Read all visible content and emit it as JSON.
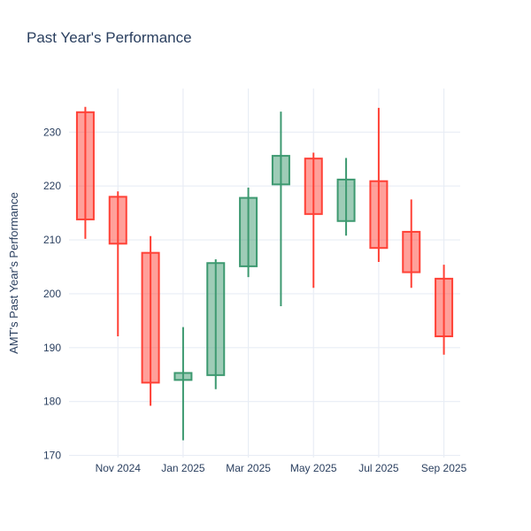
{
  "window": {
    "background": "#ffffff"
  },
  "chart_data": {
    "type": "candlestick",
    "title": "Past Year's Performance",
    "xlabel": "",
    "ylabel": "AMT's Past Year's Performance",
    "categories": [
      "Oct 2024",
      "Nov 2024",
      "Dec 2024",
      "Jan 2025",
      "Feb 2025",
      "Mar 2025",
      "Apr 2025",
      "May 2025",
      "Jun 2025",
      "Jul 2025",
      "Aug 2025",
      "Sep 2025"
    ],
    "ohlc": [
      {
        "x": "Oct 2024",
        "open": 233.7,
        "high": 234.7,
        "low": 210.2,
        "close": 213.8
      },
      {
        "x": "Nov 2024",
        "open": 218.0,
        "high": 219.0,
        "low": 192.1,
        "close": 209.3
      },
      {
        "x": "Dec 2024",
        "open": 207.6,
        "high": 210.7,
        "low": 179.2,
        "close": 183.5
      },
      {
        "x": "Jan 2025",
        "open": 184.0,
        "high": 193.8,
        "low": 172.8,
        "close": 185.3
      },
      {
        "x": "Feb 2025",
        "open": 184.9,
        "high": 206.4,
        "low": 182.3,
        "close": 205.7
      },
      {
        "x": "Mar 2025",
        "open": 205.1,
        "high": 219.7,
        "low": 203.1,
        "close": 217.8
      },
      {
        "x": "Apr 2025",
        "open": 220.3,
        "high": 233.8,
        "low": 197.7,
        "close": 225.6
      },
      {
        "x": "May 2025",
        "open": 225.1,
        "high": 226.2,
        "low": 201.1,
        "close": 214.8
      },
      {
        "x": "Jun 2025",
        "open": 213.5,
        "high": 225.2,
        "low": 210.8,
        "close": 221.2
      },
      {
        "x": "Jul 2025",
        "open": 220.9,
        "high": 234.5,
        "low": 205.9,
        "close": 208.5
      },
      {
        "x": "Aug 2025",
        "open": 211.5,
        "high": 217.5,
        "low": 201.1,
        "close": 204.0
      },
      {
        "x": "Sep 2025",
        "open": 202.8,
        "high": 205.4,
        "low": 188.7,
        "close": 192.1
      }
    ],
    "xticks": [
      "Nov 2024",
      "Jan 2025",
      "Mar 2025",
      "May 2025",
      "Jul 2025",
      "Sep 2025"
    ],
    "yticks": [
      170,
      180,
      190,
      200,
      210,
      220,
      230
    ],
    "ylim": [
      169.6,
      238.1
    ],
    "grid": true,
    "legend": "none",
    "colors": {
      "increasing_line": "#3D9970",
      "increasing_fill": "rgba(61,153,112,0.5)",
      "decreasing_line": "#FF4136",
      "decreasing_fill": "rgba(255,65,54,0.5)",
      "grid": "#E8EDF5",
      "text": "#2a3f5f",
      "background": "#ffffff"
    }
  }
}
